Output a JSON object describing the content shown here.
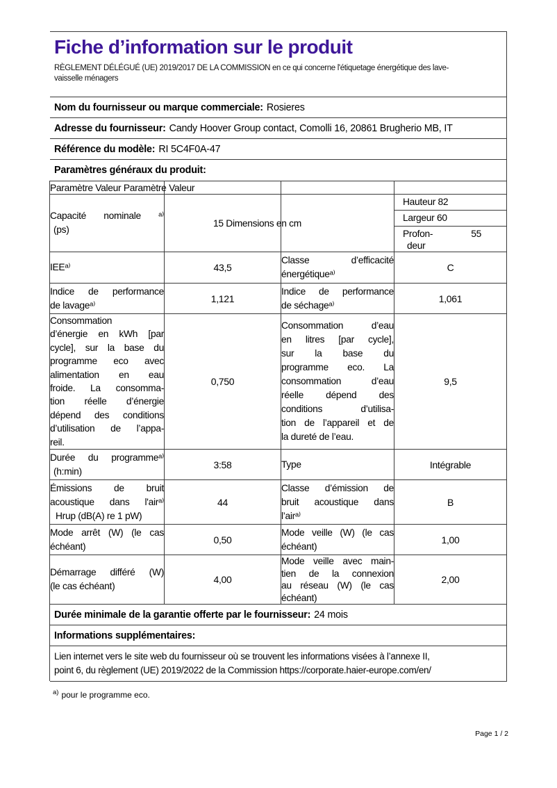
{
  "header": {
    "title": "Fiche d’information sur le produit",
    "title_color": "#3E1798",
    "subtitle_line1": "RÈGLEMENT DÉLÉGUÉ (UE) 2019/2017 DE LA COMMISSION en ce qui concerne l'étiquetage énergétique des lave-",
    "subtitle_line2": "vaisselle ménagers"
  },
  "supplier": {
    "name_label": "Nom du fournisseur ou marque commerciale:",
    "name_value": "Rosieres",
    "address_label": "Adresse du fournisseur:",
    "address_value": "Candy Hoover Group contact, Comolli 16, 20861 Brugherio MB, IT",
    "model_label": "Référence du modèle:",
    "model_value": "RI 5C4F0A-47",
    "general_params_label": "Paramètres généraux du produit:"
  },
  "grid": {
    "header_text": "Paramètre Valeur Paramètre Valeur",
    "capacity": {
      "label_lines": [
        "Capacité nominale ᵃ⁾",
        "(ps)"
      ],
      "dims_text": "15 Dimensions en cm"
    },
    "dimensions": {
      "height": "Hauteur 82",
      "width": "Largeur 60",
      "depth_label_1": "Profon-",
      "depth_value": "55",
      "depth_label_2": "deur"
    },
    "rows": {
      "iee": {
        "l_lines": [
          "IEEᵃ⁾"
        ],
        "l_value": "43,5",
        "r_lines": [
          "Classe d’efficacité",
          "énergétiqueᵃ⁾"
        ],
        "r_value": "C"
      },
      "perf": {
        "l_lines": [
          "Indice de performance",
          "de lavageᵃ⁾"
        ],
        "l_value": "1,121",
        "r_lines": [
          "Indice de performance",
          "de séchageᵃ⁾"
        ],
        "r_value": "1,061"
      },
      "conso": {
        "l_lines": [
          "Consommation",
          "d’énergie en kWh [par",
          "cycle], sur la base du",
          "programme eco avec",
          "alimentation en eau",
          "froide. La consomma-",
          "tion réelle d’énergie",
          "dépend des conditions",
          "d’utilisation de l’appa-",
          "reil."
        ],
        "l_value": "0,750",
        "r_lines": [
          "Consommation d’eau",
          "en litres [par cycle],",
          "sur la base du",
          "programme eco. La",
          "consommation d’eau",
          "réelle dépend des",
          "conditions d’utilisa-",
          "tion de l’appareil et de",
          "la dureté de l’eau."
        ],
        "r_value": "9,5"
      },
      "duree": {
        "l_lines": [
          "Durée du programmeᵃ⁾",
          "(h:min)"
        ],
        "l_value": "3:58",
        "r_lines": [
          "Type"
        ],
        "r_value": "Intégrable"
      },
      "bruit": {
        "l_lines": [
          "Émissions de bruit",
          "acoustique dans l'airᵃ⁾",
          "Hrup (dB(A) re 1 pW)"
        ],
        "l_value": "44",
        "r_lines": [
          "Classe d’émission de",
          "bruit acoustique dans",
          "l’airᵃ⁾"
        ],
        "r_value": "B"
      },
      "arret": {
        "l_lines": [
          "Mode arrêt (W) (le cas",
          "échéant)"
        ],
        "l_value": "0,50",
        "r_lines": [
          "Mode veille (W) (le cas",
          "échéant)"
        ],
        "r_value": "1,00"
      },
      "demarrage": {
        "l_lines": [
          "Démarrage différé (W)",
          "(le cas échéant)"
        ],
        "l_value": "4,00",
        "r_lines": [
          "Mode veille avec main-",
          "tien de la connexion",
          "au réseau (W) (le cas",
          "échéant)"
        ],
        "r_value": "2,00"
      }
    }
  },
  "bottom": {
    "garantie_label": "Durée minimale de la garantie offerte par le fournisseur:",
    "garantie_value": "24 mois",
    "info_label": "Informations supplémentaires:",
    "lien_line1": "Lien internet vers le site web du fournisseur où se trouvent les informations visées à l’annexe II,",
    "lien_line2": "point 6, du règlement (UE) 2019/2022 de la Commission https://corporate.haier-europe.com/en/"
  },
  "footer": {
    "footnote_marker": "a)",
    "footnote_text": "pour le programme eco.",
    "page_number": "Page 1 / 2"
  }
}
